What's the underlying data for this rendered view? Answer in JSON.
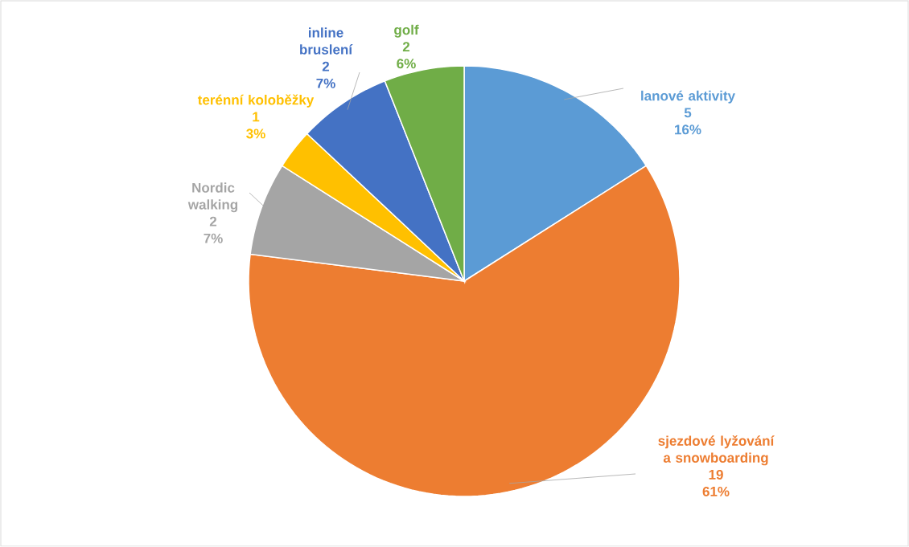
{
  "chart_data": {
    "type": "pie",
    "categories": [
      "lanové aktivity",
      "sjezdové lyžování a snowboarding",
      "Nordic walking",
      "terénní koloběžky",
      "inline bruslení",
      "golf"
    ],
    "values": [
      16,
      61,
      7,
      3,
      7,
      6
    ],
    "value_labels": [
      "16%",
      "61%",
      "7%",
      "3%",
      "7%",
      "6%"
    ],
    "annotations": [
      "5",
      "19",
      "2",
      "1",
      "2",
      "2"
    ],
    "colors": [
      "#5b9bd5",
      "#ed7d31",
      "#a5a5a5",
      "#ffc000",
      "#4472c4",
      "#70ad47"
    ]
  }
}
